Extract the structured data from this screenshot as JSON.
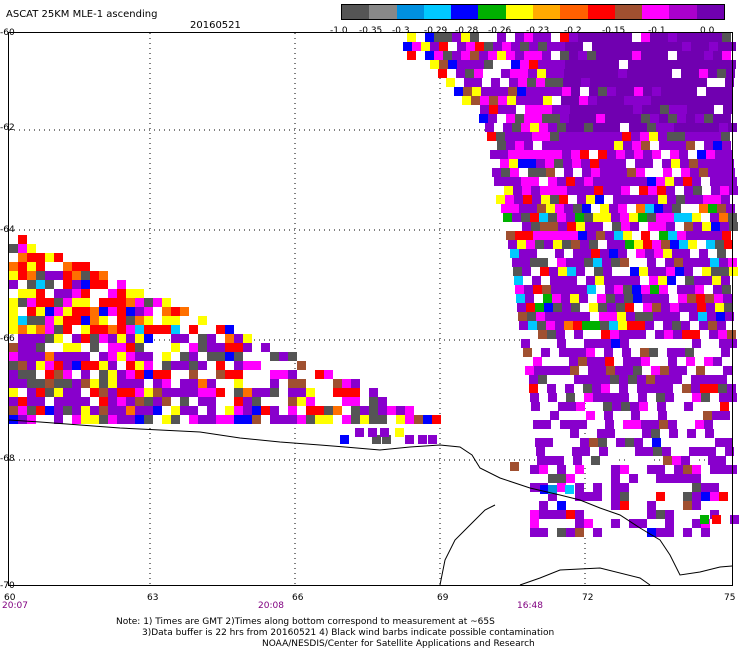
{
  "title": "ASCAT 25KM MLE-1 ascending",
  "date": "20160521",
  "colorbar": {
    "labels": [
      "-1.0",
      "-0.35",
      "-0.3",
      "-0.29",
      "-0.28",
      "-0.26",
      "-0.23",
      "-0.2",
      "-0.15",
      "-0.1",
      "0.0"
    ],
    "colors": [
      "#555555",
      "#888888",
      "#0090e0",
      "#00c8ff",
      "#0000ff",
      "#00b000",
      "#ffff00",
      "#ffaa00",
      "#ff6000",
      "#ff0000",
      "#a05030",
      "#ff00ff",
      "#aa00cc",
      "#7000b0"
    ]
  },
  "axes": {
    "lat_labels": [
      "-60",
      "-62",
      "-64",
      "-66",
      "-68",
      "-70"
    ],
    "lon_labels": [
      "60",
      "63",
      "66",
      "69",
      "72",
      "75"
    ]
  },
  "times": [
    "20:07",
    "20:08",
    "16:48"
  ],
  "note": {
    "line1": "Note: 1) Times are GMT 2)Times along bottom correspond to measurement at ~65S",
    "line2": "3)Data buffer is 22 hrs from 20160521 4) Black wind barbs indicate possible contamination",
    "line3": "NOAA/NESDIS/Center for Satellite Applications and Research"
  }
}
